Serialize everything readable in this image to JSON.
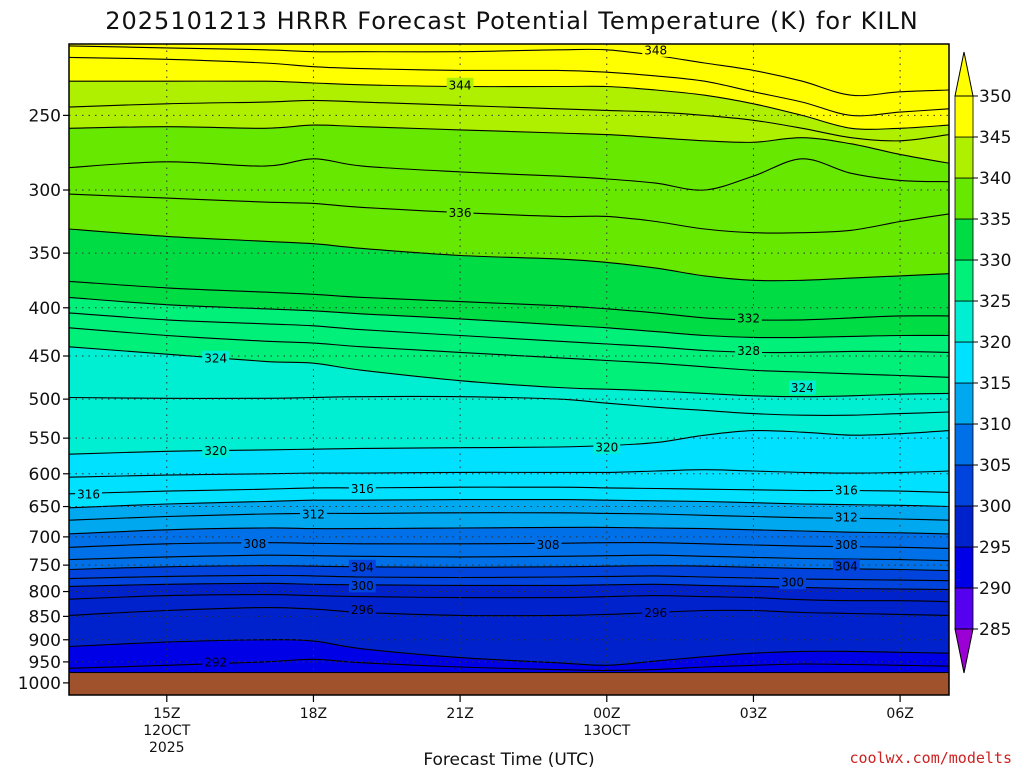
{
  "chart_data": {
    "type": "heatmap",
    "title": "2025101213 HRRR Forecast Potential Temperature (K) for KILN",
    "xlabel": "Forecast Time (UTC)",
    "ylabel": "",
    "x_range_hours": [
      13.0,
      31.0
    ],
    "y_range_hpa": [
      210,
      1030
    ],
    "y_scale": "log",
    "x_ticks": [
      {
        "hour": 15,
        "lines": [
          "15Z",
          "12OCT",
          "2025"
        ]
      },
      {
        "hour": 18,
        "lines": [
          "18Z"
        ]
      },
      {
        "hour": 21,
        "lines": [
          "21Z"
        ]
      },
      {
        "hour": 24,
        "lines": [
          "00Z",
          "13OCT"
        ]
      },
      {
        "hour": 27,
        "lines": [
          "03Z"
        ]
      },
      {
        "hour": 30,
        "lines": [
          "06Z"
        ]
      }
    ],
    "y_ticks": [
      250,
      300,
      350,
      400,
      450,
      500,
      550,
      600,
      650,
      700,
      750,
      800,
      850,
      900,
      950,
      1000
    ],
    "grid": "dotted",
    "surface_pressure_hpa": 975,
    "surface_color": "#a0522d",
    "colorbar": {
      "levels": [
        285,
        290,
        295,
        300,
        305,
        310,
        315,
        320,
        325,
        330,
        335,
        340,
        345,
        350
      ],
      "colors": [
        "#9b00d4",
        "#5500ee",
        "#0000e6",
        "#0022cc",
        "#0044dd",
        "#0070e8",
        "#00a8f0",
        "#00e0ff",
        "#00efd2",
        "#00f07a",
        "#00dd44",
        "#66e800",
        "#aef000",
        "#ffff00",
        "#ffff00"
      ],
      "extend": "both"
    },
    "hours": [
      13,
      15,
      17,
      18,
      19,
      21,
      23,
      24,
      25,
      26,
      27,
      28,
      29,
      30,
      31
    ],
    "contours": [
      {
        "theta": 292,
        "p": [
          965,
          958,
          950,
          944,
          952,
          962,
          968,
          970,
          968,
          962,
          958,
          955,
          956,
          958,
          960
        ]
      },
      {
        "theta": 294,
        "p": [
          915,
          905,
          900,
          903,
          920,
          940,
          952,
          958,
          948,
          938,
          930,
          926,
          926,
          928,
          930
        ]
      },
      {
        "theta": 296,
        "p": [
          848,
          838,
          832,
          835,
          842,
          848,
          848,
          846,
          842,
          838,
          838,
          842,
          844,
          846,
          848
        ]
      },
      {
        "theta": 298,
        "p": [
          815,
          808,
          806,
          808,
          810,
          812,
          812,
          810,
          808,
          810,
          812,
          816,
          818,
          818,
          820
        ]
      },
      {
        "theta": 300,
        "p": [
          790,
          786,
          784,
          786,
          787,
          788,
          788,
          787,
          786,
          788,
          790,
          792,
          794,
          795,
          796
        ]
      },
      {
        "theta": 302,
        "p": [
          775,
          771,
          769,
          770,
          772,
          773,
          772,
          771,
          770,
          772,
          774,
          776,
          777,
          778,
          779
        ]
      },
      {
        "theta": 304,
        "p": [
          758,
          753,
          751,
          752,
          753,
          754,
          753,
          752,
          751,
          752,
          754,
          756,
          757,
          758,
          760
        ]
      },
      {
        "theta": 306,
        "p": [
          740,
          735,
          732,
          733,
          734,
          735,
          734,
          733,
          732,
          734,
          736,
          738,
          739,
          740,
          742
        ]
      },
      {
        "theta": 308,
        "p": [
          718,
          712,
          710,
          711,
          712,
          712,
          711,
          710,
          710,
          712,
          714,
          716,
          717,
          718,
          720
        ]
      },
      {
        "theta": 310,
        "p": [
          695,
          688,
          685,
          686,
          686,
          685,
          684,
          684,
          685,
          686,
          688,
          690,
          692,
          693,
          695
        ]
      },
      {
        "theta": 312,
        "p": [
          672,
          666,
          662,
          661,
          661,
          660,
          660,
          661,
          662,
          664,
          666,
          668,
          669,
          670,
          672
        ]
      },
      {
        "theta": 314,
        "p": [
          652,
          646,
          642,
          640,
          640,
          639,
          639,
          640,
          641,
          642,
          644,
          646,
          647,
          648,
          650
        ]
      },
      {
        "theta": 316,
        "p": [
          630,
          626,
          623,
          621,
          621,
          620,
          620,
          621,
          622,
          623,
          624,
          625,
          625,
          626,
          628
        ]
      },
      {
        "theta": 318,
        "p": [
          605,
          602,
          600,
          599,
          599,
          598,
          598,
          598,
          596,
          594,
          596,
          598,
          599,
          598,
          596
        ]
      },
      {
        "theta": 320,
        "p": [
          572,
          568,
          566,
          565,
          564,
          563,
          562,
          560,
          556,
          546,
          540,
          542,
          546,
          544,
          540
        ]
      },
      {
        "theta": 322,
        "p": [
          498,
          499,
          499,
          498,
          497,
          497,
          500,
          505,
          510,
          514,
          518,
          520,
          520,
          518,
          516
        ]
      },
      {
        "theta": 324,
        "p": [
          440,
          448,
          456,
          458,
          466,
          478,
          486,
          488,
          490,
          493,
          496,
          497,
          496,
          494,
          493
        ]
      },
      {
        "theta": 326,
        "p": [
          420,
          428,
          434,
          436,
          440,
          446,
          452,
          455,
          458,
          462,
          466,
          468,
          470,
          472,
          474
        ]
      },
      {
        "theta": 328,
        "p": [
          405,
          412,
          416,
          418,
          422,
          428,
          434,
          437,
          440,
          444,
          446,
          446,
          445,
          445,
          446
        ]
      },
      {
        "theta": 330,
        "p": [
          390,
          397,
          401,
          403,
          406,
          411,
          417,
          420,
          424,
          428,
          430,
          430,
          429,
          428,
          428
        ]
      },
      {
        "theta": 332,
        "p": [
          375,
          381,
          385,
          387,
          390,
          394,
          398,
          401,
          405,
          410,
          412,
          412,
          410,
          408,
          408
        ]
      },
      {
        "theta": 334,
        "p": [
          330,
          336,
          340,
          342,
          346,
          352,
          355,
          358,
          363,
          370,
          374,
          374,
          372,
          370,
          368
        ]
      },
      {
        "theta": 336,
        "p": [
          303,
          306,
          309,
          310,
          313,
          317,
          320,
          320,
          324,
          330,
          333,
          333,
          331,
          324,
          318
        ]
      },
      {
        "theta": 338,
        "p": [
          284,
          280,
          283,
          278,
          283,
          287,
          290,
          292,
          295,
          300,
          290,
          278,
          288,
          293,
          294
        ]
      },
      {
        "theta": 340,
        "p": [
          258,
          257,
          258,
          256,
          257,
          259,
          261,
          262,
          264,
          266,
          267,
          264,
          268,
          275,
          281
        ]
      },
      {
        "theta": 342,
        "p": [
          245,
          243,
          242,
          241,
          242,
          244,
          246,
          247,
          248,
          250,
          253,
          258,
          264,
          266,
          262
        ]
      },
      {
        "theta": 344,
        "p": [
          230,
          230,
          230,
          231,
          232,
          233,
          233,
          233,
          235,
          238,
          243,
          250,
          258,
          258,
          256
        ]
      },
      {
        "theta": 346,
        "p": [
          217,
          218,
          220,
          222,
          223,
          224,
          224,
          225,
          227,
          230,
          236,
          242,
          250,
          248,
          246
        ]
      },
      {
        "theta": 348,
        "p": [
          211,
          212,
          213,
          214,
          214,
          214,
          213,
          213,
          216,
          220,
          224,
          230,
          238,
          236,
          235
        ]
      }
    ],
    "contour_labels": [
      {
        "theta": 348,
        "text": "348",
        "x": 25.0,
        "p": 213
      },
      {
        "theta": 344,
        "text": "344",
        "x": 21.0,
        "p": 232
      },
      {
        "theta": 336,
        "text": "336",
        "x": 21.0,
        "p": 317
      },
      {
        "theta": 332,
        "text": "332",
        "x": 26.9,
        "p": 410
      },
      {
        "theta": 328,
        "text": "328",
        "x": 26.9,
        "p": 444
      },
      {
        "theta": 324,
        "text": "324",
        "x": 16.0,
        "p": 452
      },
      {
        "theta": 324,
        "text": "324",
        "x": 28.0,
        "p": 486
      },
      {
        "theta": 320,
        "text": "320",
        "x": 16.0,
        "p": 567
      },
      {
        "theta": 320,
        "text": "320",
        "x": 24.0,
        "p": 562
      },
      {
        "theta": 316,
        "text": "316",
        "x": 13.4,
        "p": 630
      },
      {
        "theta": 316,
        "text": "316",
        "x": 19.0,
        "p": 622
      },
      {
        "theta": 316,
        "text": "316",
        "x": 28.9,
        "p": 624
      },
      {
        "theta": 312,
        "text": "312",
        "x": 18.0,
        "p": 662
      },
      {
        "theta": 312,
        "text": "312",
        "x": 28.9,
        "p": 667
      },
      {
        "theta": 308,
        "text": "308",
        "x": 16.8,
        "p": 711
      },
      {
        "theta": 308,
        "text": "308",
        "x": 22.8,
        "p": 713
      },
      {
        "theta": 308,
        "text": "308",
        "x": 28.9,
        "p": 713
      },
      {
        "theta": 304,
        "text": "304",
        "x": 19.0,
        "p": 753
      },
      {
        "theta": 304,
        "text": "304",
        "x": 28.9,
        "p": 752
      },
      {
        "theta": 300,
        "text": "300",
        "x": 19.0,
        "p": 788
      },
      {
        "theta": 300,
        "text": "300",
        "x": 27.8,
        "p": 782
      },
      {
        "theta": 296,
        "text": "296",
        "x": 19.0,
        "p": 836
      },
      {
        "theta": 296,
        "text": "296",
        "x": 25.0,
        "p": 842
      },
      {
        "theta": 292,
        "text": "292",
        "x": 16.0,
        "p": 950
      }
    ]
  },
  "watermark": "coolwx.com/modelts"
}
